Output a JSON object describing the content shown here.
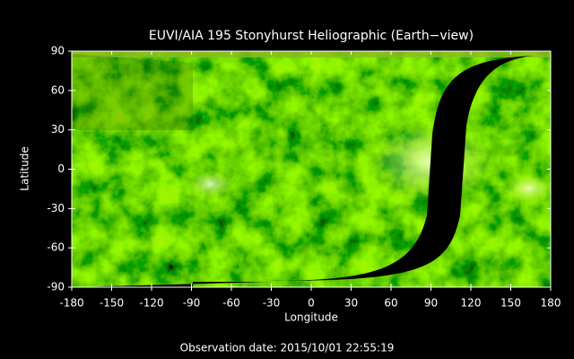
{
  "chart_data": {
    "type": "image",
    "title": "EUVI/AIA 195 Stonyhurst Heliographic (Earth−view)",
    "xlabel": "Longitude",
    "ylabel": "Latitude",
    "xlim": [
      -180,
      180
    ],
    "ylim": [
      -90,
      90
    ],
    "xticks": [
      -180,
      -150,
      -120,
      -90,
      -60,
      -30,
      0,
      30,
      60,
      90,
      120,
      150,
      180
    ],
    "yticks": [
      -90,
      -60,
      -30,
      0,
      30,
      60,
      90
    ],
    "footer": "Observation date: 2015/10/01 22:55:19"
  }
}
